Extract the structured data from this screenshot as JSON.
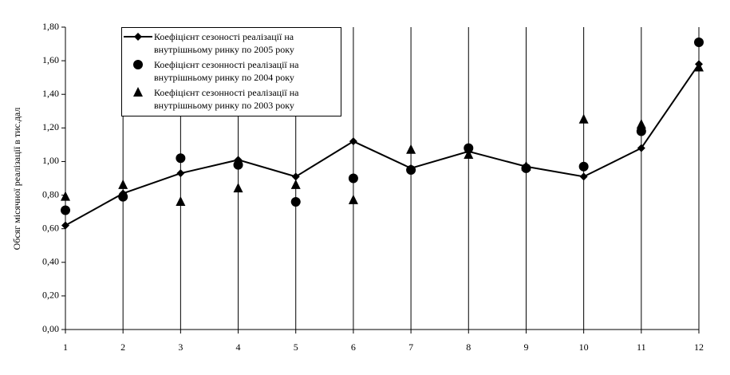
{
  "chart_data": {
    "type": "line",
    "ylabel": "Обсяг місячної реалізації в тис.дал",
    "x": [
      1,
      2,
      3,
      4,
      5,
      6,
      7,
      8,
      9,
      10,
      11,
      12
    ],
    "xlim": [
      1,
      12
    ],
    "xticks": [
      1,
      2,
      3,
      4,
      5,
      6,
      7,
      8,
      9,
      10,
      11,
      12
    ],
    "ylim": [
      0,
      1.8
    ],
    "yticks": [
      {
        "value": 0,
        "label": "0,00"
      },
      {
        "value": 0.2,
        "label": "0,20"
      },
      {
        "value": 0.4,
        "label": "0,40"
      },
      {
        "value": 0.6,
        "label": "0,60"
      },
      {
        "value": 0.8,
        "label": "0,80"
      },
      {
        "value": 1,
        "label": "1,00"
      },
      {
        "value": 1.2,
        "label": "1,20"
      },
      {
        "value": 1.4,
        "label": "1,40"
      },
      {
        "value": 1.6,
        "label": "1,60"
      },
      {
        "value": 1.8,
        "label": "1,80"
      }
    ],
    "grid": "x",
    "legend": "upper left",
    "series": [
      {
        "name": "Коефіцієнт сезоності реалізації на внутрішньому ринку по 2005 року",
        "color": "#000000",
        "marker": "diamond",
        "line": true,
        "values": [
          0.62,
          0.81,
          0.93,
          1.01,
          0.91,
          1.12,
          0.96,
          1.06,
          0.97,
          0.91,
          1.08,
          1.58
        ]
      },
      {
        "name": "Коефіцієнт сезонності реалізації на внутрішньому ринку по 2004 року",
        "color": "#000000",
        "marker": "circle",
        "line": false,
        "values": [
          0.71,
          0.79,
          1.02,
          0.98,
          0.76,
          0.9,
          0.95,
          1.08,
          0.96,
          0.97,
          1.18,
          1.71
        ]
      },
      {
        "name": "Коефіцієнт сезонності реалізації на внутрішньому ринку по 2003 року",
        "color": "#000000",
        "marker": "triangle",
        "line": false,
        "values": [
          0.79,
          0.86,
          0.76,
          0.84,
          0.86,
          0.77,
          1.07,
          1.04,
          0.97,
          1.25,
          1.22,
          1.56
        ]
      }
    ]
  }
}
